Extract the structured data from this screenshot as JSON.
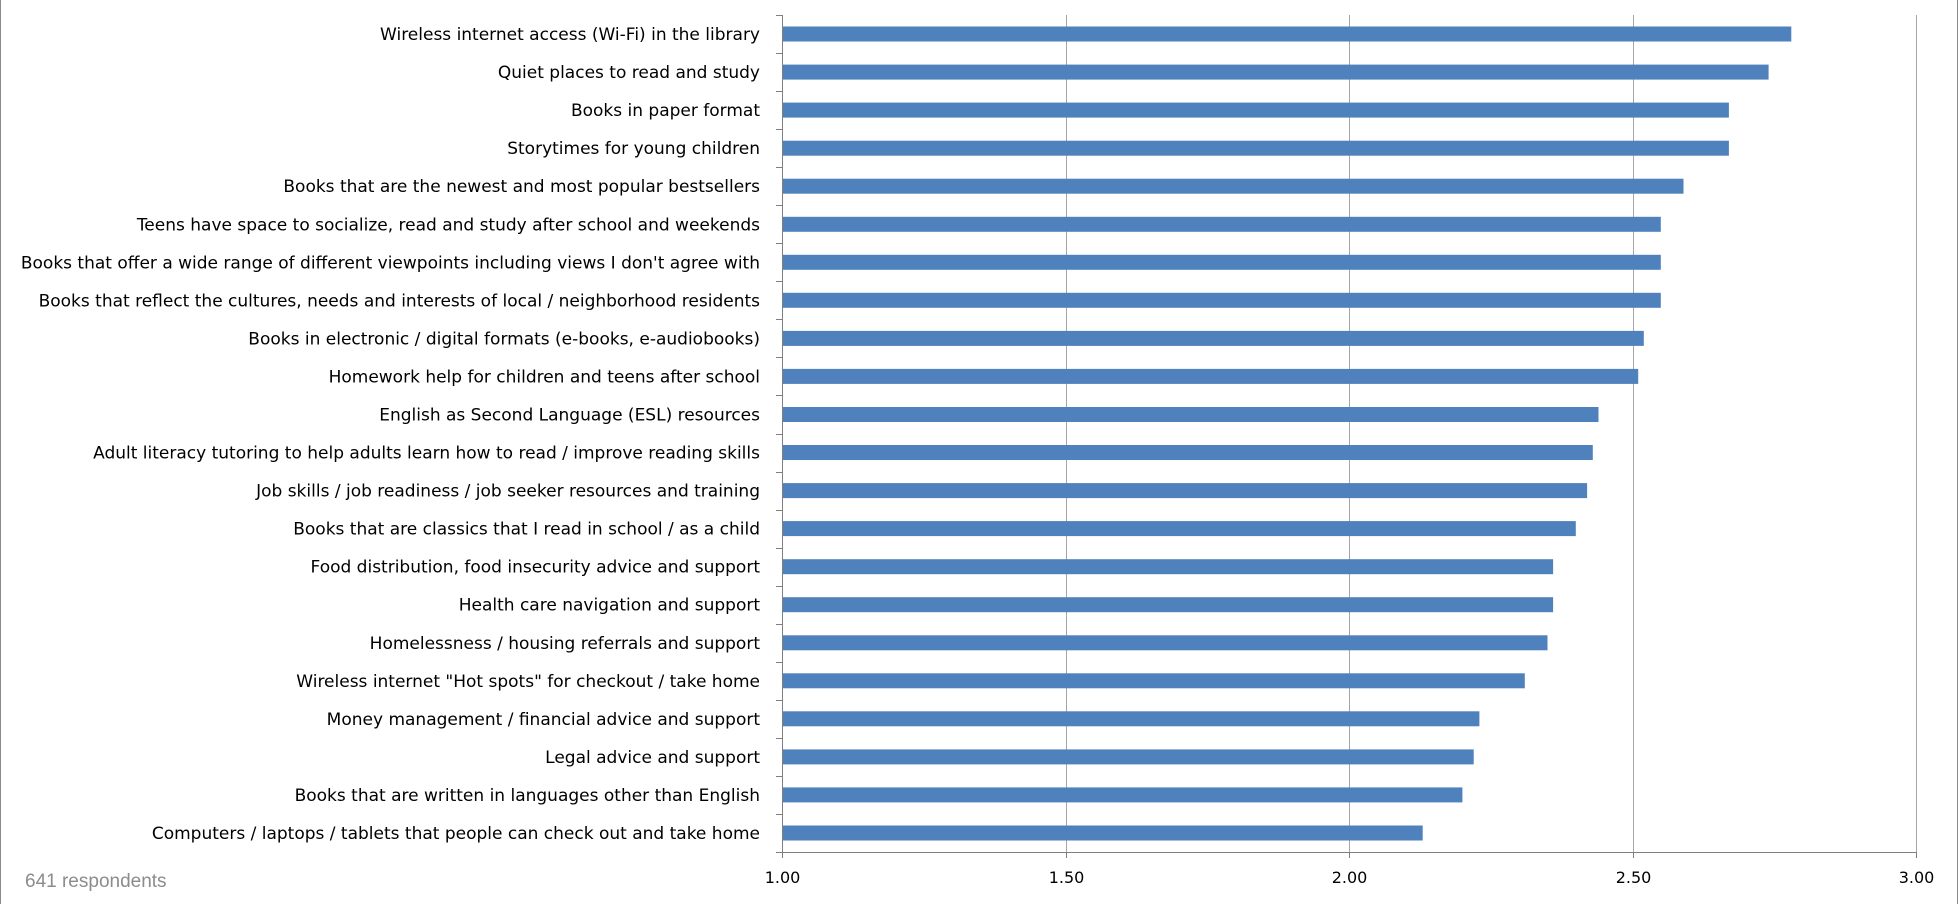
{
  "chart_data": {
    "type": "bar",
    "orientation": "horizontal",
    "categories": [
      "Wireless internet access (Wi-Fi) in the library",
      "Quiet places to read and study",
      "Books in paper format",
      "Storytimes for young children",
      "Books that are the newest and most popular bestsellers",
      "Teens have space to socialize, read and study after school and weekends",
      "Books that offer a wide range of different viewpoints including views I don't agree with",
      "Books that reflect the cultures, needs and interests of local / neighborhood residents",
      "Books in electronic / digital formats (e-books, e-audiobooks)",
      "Homework help for children and teens after school",
      "English as Second Language (ESL) resources",
      "Adult literacy tutoring to help adults learn how to read / improve reading skills",
      "Job skills / job readiness / job seeker resources and training",
      "Books that are classics that I read in school / as a child",
      "Food distribution, food insecurity advice and support",
      "Health care navigation and support",
      "Homelessness / housing referrals and support",
      "Wireless internet \"Hot spots\" for checkout / take home",
      "Money management / financial advice and support",
      "Legal advice and support",
      "Books that are written in languages other than English",
      "Computers / laptops / tablets that people can check out and take home"
    ],
    "values": [
      2.78,
      2.74,
      2.67,
      2.67,
      2.59,
      2.55,
      2.55,
      2.55,
      2.52,
      2.51,
      2.44,
      2.43,
      2.42,
      2.4,
      2.36,
      2.36,
      2.35,
      2.31,
      2.23,
      2.22,
      2.2,
      2.13
    ],
    "xlim": [
      1.0,
      3.0
    ],
    "xticks": [
      "1.00",
      "1.50",
      "2.00",
      "2.50",
      "3.00"
    ],
    "xtick_values": [
      1.0,
      1.5,
      2.0,
      2.5,
      3.0
    ],
    "grid": true,
    "legend": "none",
    "bar_color": "#4f81bd",
    "title": "",
    "xlabel": "",
    "ylabel": ""
  },
  "footnote": "641 respondents"
}
